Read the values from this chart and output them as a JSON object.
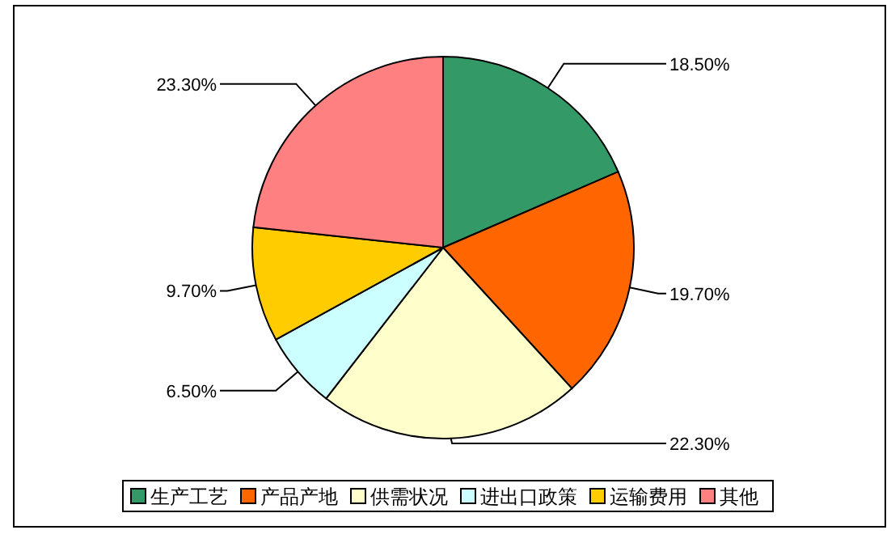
{
  "chart_data": {
    "type": "pie",
    "categories": [
      "生产工艺",
      "产品产地",
      "供需状况",
      "进出口政策",
      "运输费用",
      "其他"
    ],
    "values": [
      18.5,
      19.7,
      22.3,
      6.5,
      9.7,
      23.3
    ],
    "colors": [
      "#339966",
      "#ff6600",
      "#ffffcc",
      "#ccffff",
      "#ffcc00",
      "#ff8080"
    ],
    "value_labels": [
      "18.50%",
      "19.70%",
      "22.30%",
      "6.50%",
      "9.70%",
      "23.30%"
    ],
    "legend": "bottom"
  }
}
